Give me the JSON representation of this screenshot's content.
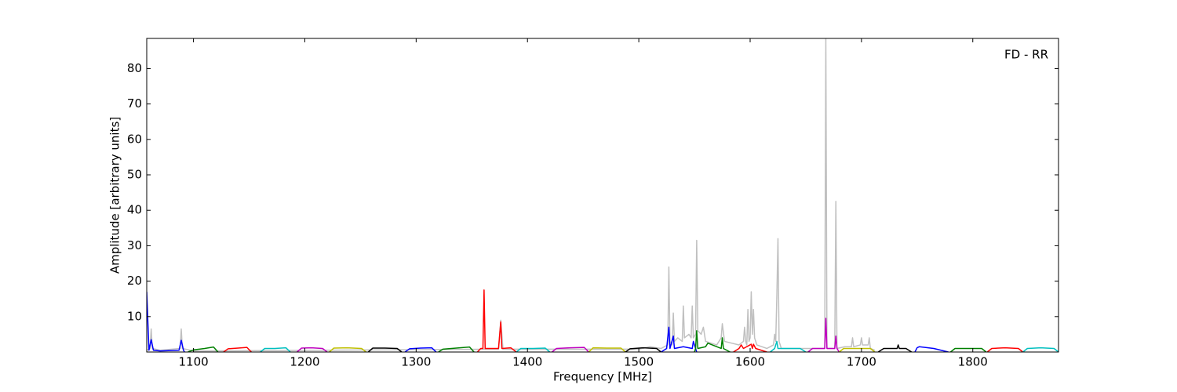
{
  "chart_data": {
    "type": "line",
    "annotation": "FD - RR",
    "xlabel": "Frequency [MHz]",
    "ylabel": "Amplitude [arbitrary units]",
    "xlim": [
      1058,
      1877
    ],
    "ylim": [
      0,
      88.5
    ],
    "xticks": [
      1100,
      1200,
      1300,
      1400,
      1500,
      1600,
      1700,
      1800
    ],
    "yticks": [
      10,
      20,
      30,
      40,
      50,
      60,
      70,
      80
    ],
    "grid": false,
    "series": [
      {
        "color": "#c0c0c0",
        "x": [
          1058,
          1061,
          1062,
          1063,
          1070,
          1088,
          1089,
          1090,
          1100,
          1374,
          1376,
          1378,
          1500,
          1510,
          1520,
          1526,
          1527,
          1528,
          1530,
          1531,
          1532,
          1535,
          1539,
          1540,
          1541,
          1545,
          1547,
          1548,
          1549,
          1551,
          1552,
          1553,
          1556,
          1558,
          1560,
          1570,
          1574,
          1575,
          1577,
          1590,
          1594,
          1595,
          1596,
          1597,
          1598,
          1599,
          1600,
          1601,
          1602,
          1603,
          1604,
          1606,
          1615,
          1621,
          1622,
          1623,
          1624,
          1625,
          1626,
          1628,
          1660,
          1667,
          1668,
          1669,
          1676,
          1677,
          1678,
          1685,
          1691,
          1692,
          1693,
          1699,
          1700,
          1701,
          1706,
          1707,
          1708,
          1712
        ],
        "values": [
          0.5,
          1,
          6.5,
          1,
          0.5,
          1,
          6.5,
          1,
          0.3,
          0.8,
          9,
          0.8,
          0.8,
          1.5,
          1,
          2,
          24,
          3,
          2,
          11,
          3,
          4,
          3,
          13,
          4,
          5,
          4,
          13,
          4,
          5,
          31.5,
          6,
          5,
          7,
          3,
          2,
          4,
          8,
          3,
          2,
          3,
          7,
          3,
          2,
          12,
          3,
          4,
          17,
          5,
          12,
          4,
          2,
          1,
          2,
          5,
          3,
          16,
          32,
          3,
          1,
          1,
          1,
          88.5,
          1,
          1,
          42.5,
          1,
          1.5,
          1.5,
          4,
          1.5,
          2,
          4,
          2,
          2,
          4,
          1,
          0.5
        ]
      },
      {
        "color": "#0000ff",
        "x": [
          1058,
          1060,
          1062,
          1064,
          1070,
          1087,
          1089,
          1091,
          1092
        ],
        "values": [
          17,
          0.5,
          3.5,
          0.5,
          0.3,
          0.5,
          3.3,
          0.5,
          0
        ]
      },
      {
        "color": "#008000",
        "x": [
          1095,
          1100,
          1110,
          1118,
          1122
        ],
        "values": [
          0,
          0.6,
          1,
          1.4,
          0
        ]
      },
      {
        "color": "#ff0000",
        "x": [
          1127,
          1131,
          1140,
          1148,
          1152
        ],
        "values": [
          0,
          0.9,
          1.1,
          1.3,
          0
        ]
      },
      {
        "color": "#00bfbf",
        "x": [
          1160,
          1164,
          1173,
          1183,
          1187
        ],
        "values": [
          0,
          1,
          1,
          1.2,
          0
        ]
      },
      {
        "color": "#bf00bf",
        "x": [
          1193,
          1197,
          1206,
          1216,
          1220
        ],
        "values": [
          0,
          1.1,
          1.2,
          1,
          0
        ]
      },
      {
        "color": "#bfbf00",
        "x": [
          1222,
          1226,
          1238,
          1251,
          1255
        ],
        "values": [
          0,
          1.1,
          1.2,
          1,
          0
        ]
      },
      {
        "color": "#000000",
        "x": [
          1257,
          1261,
          1272,
          1283,
          1287
        ],
        "values": [
          0,
          1.1,
          1.1,
          1,
          0
        ]
      },
      {
        "color": "#0000ff",
        "x": [
          1290,
          1294,
          1304,
          1314,
          1318
        ],
        "values": [
          0,
          0.9,
          1.1,
          1.2,
          0
        ]
      },
      {
        "color": "#008000",
        "x": [
          1320,
          1324,
          1336,
          1348,
          1352
        ],
        "values": [
          0,
          0.8,
          1.1,
          1.4,
          0
        ]
      },
      {
        "color": "#ff0000",
        "x": [
          1355,
          1358,
          1360,
          1361,
          1362,
          1374,
          1376,
          1377,
          1385,
          1390
        ],
        "values": [
          0,
          1,
          1,
          17.5,
          1,
          1,
          8.5,
          1,
          1.2,
          0
        ]
      },
      {
        "color": "#00bfbf",
        "x": [
          1390,
          1394,
          1405,
          1416,
          1420
        ],
        "values": [
          0,
          1,
          1,
          1.1,
          0
        ]
      },
      {
        "color": "#bf00bf",
        "x": [
          1422,
          1426,
          1438,
          1451,
          1455
        ],
        "values": [
          0,
          1,
          1.2,
          1.3,
          0
        ]
      },
      {
        "color": "#bfbf00",
        "x": [
          1455,
          1459,
          1471,
          1484,
          1488
        ],
        "values": [
          0,
          1.2,
          1.1,
          1.1,
          0
        ]
      },
      {
        "color": "#000000",
        "x": [
          1488,
          1492,
          1504,
          1516,
          1520
        ],
        "values": [
          0,
          0.9,
          1.2,
          1,
          0
        ]
      },
      {
        "color": "#0000ff",
        "x": [
          1520,
          1525,
          1527,
          1528,
          1531,
          1532,
          1540,
          1548,
          1549,
          1552
        ],
        "values": [
          0,
          1,
          7,
          1,
          4.5,
          1,
          1.5,
          1,
          3,
          0
        ]
      },
      {
        "color": "#008000",
        "x": [
          1550,
          1551,
          1552,
          1553,
          1560,
          1562,
          1574,
          1575,
          1576,
          1582
        ],
        "values": [
          0,
          1,
          6,
          1,
          1.5,
          2.5,
          1,
          4,
          1,
          0
        ]
      },
      {
        "color": "#ff0000",
        "x": [
          1585,
          1590,
          1592,
          1594,
          1601,
          1602,
          1603,
          1605,
          1615
        ],
        "values": [
          0,
          1,
          2,
          1,
          2.2,
          1,
          2.2,
          1,
          0
        ]
      },
      {
        "color": "#00bfbf",
        "x": [
          1618,
          1622,
          1624,
          1625,
          1626,
          1630,
          1645,
          1650
        ],
        "values": [
          0,
          1,
          3,
          1,
          1,
          1,
          1,
          0
        ]
      },
      {
        "color": "#bf00bf",
        "x": [
          1652,
          1656,
          1667,
          1668,
          1669,
          1676,
          1677,
          1678,
          1680
        ],
        "values": [
          0,
          1,
          1,
          9.5,
          1,
          1,
          4.5,
          1,
          0
        ]
      },
      {
        "color": "#bfbf00",
        "x": [
          1680,
          1684,
          1696,
          1708,
          1712
        ],
        "values": [
          0,
          1,
          1,
          1,
          0
        ]
      },
      {
        "color": "#000000",
        "x": [
          1715,
          1720,
          1732,
          1733,
          1734,
          1740,
          1745
        ],
        "values": [
          0,
          1,
          1,
          2,
          1,
          1,
          0
        ]
      },
      {
        "color": "#0000ff",
        "x": [
          1748,
          1750,
          1752,
          1765,
          1778
        ],
        "values": [
          0,
          1.2,
          1.5,
          1,
          0
        ]
      },
      {
        "color": "#008000",
        "x": [
          1780,
          1784,
          1796,
          1808,
          1812
        ],
        "values": [
          0,
          1,
          1,
          1,
          0
        ]
      },
      {
        "color": "#ff0000",
        "x": [
          1813,
          1817,
          1829,
          1841,
          1845
        ],
        "values": [
          0,
          1,
          1.2,
          1,
          0
        ]
      },
      {
        "color": "#00bfbf",
        "x": [
          1845,
          1849,
          1861,
          1873,
          1877
        ],
        "values": [
          0,
          1,
          1.2,
          1,
          0
        ]
      }
    ]
  }
}
